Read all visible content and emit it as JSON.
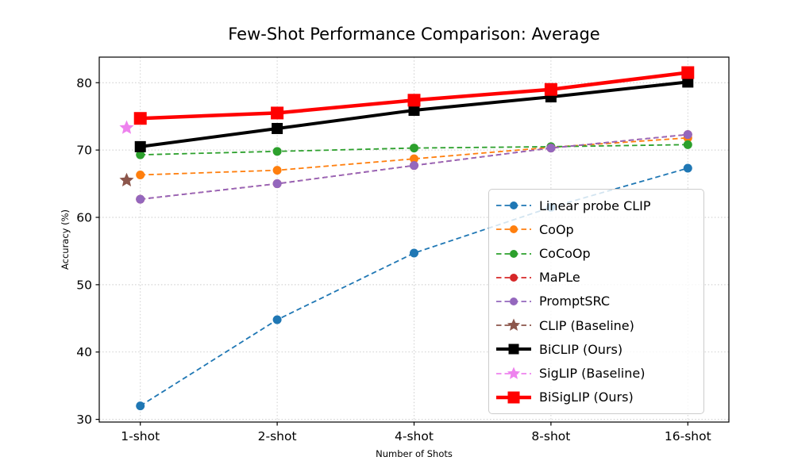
{
  "title": "Few-Shot Performance Comparison: Average",
  "chart_data": {
    "type": "line",
    "title": "Few-Shot Performance Comparison: Average",
    "xlabel": "Number of Shots",
    "ylabel": "Accuracy (%)",
    "categories": [
      "1-shot",
      "2-shot",
      "4-shot",
      "8-shot",
      "16-shot"
    ],
    "yticks": [
      30,
      40,
      50,
      60,
      70,
      80
    ],
    "ylim": [
      29.6,
      83.8
    ],
    "grid": true,
    "grid_style": "dotted",
    "legend_position": "lower-right-inside",
    "series": [
      {
        "name": "Linear probe CLIP",
        "color": "#1f77b4",
        "line": "dashed",
        "marker": "circle",
        "width": 1.8,
        "values": [
          32.0,
          44.8,
          54.7,
          61.5,
          67.3
        ]
      },
      {
        "name": "CoOp",
        "color": "#ff7f0e",
        "line": "dashed",
        "marker": "circle",
        "width": 1.8,
        "values": [
          66.3,
          67.0,
          68.7,
          70.4,
          71.8
        ]
      },
      {
        "name": "CoCoOp",
        "color": "#2ca02c",
        "line": "dashed",
        "marker": "circle",
        "width": 1.8,
        "values": [
          69.3,
          69.8,
          70.3,
          70.5,
          70.8
        ]
      },
      {
        "name": "MaPLe",
        "color": "#d62728",
        "line": "dashed",
        "marker": "circle",
        "width": 1.8,
        "values": [
          62.7,
          65.0,
          67.7,
          70.3,
          72.3
        ]
      },
      {
        "name": "PromptSRC",
        "color": "#9467bd",
        "line": "dashed",
        "marker": "circle",
        "width": 1.8,
        "values": [
          62.7,
          65.0,
          67.7,
          70.3,
          72.3
        ]
      },
      {
        "name": "CLIP (Baseline)",
        "color": "#8c564b",
        "line": "dashed",
        "marker": "star",
        "width": 1.8,
        "x_offset": -0.1,
        "values": [
          65.5,
          null,
          null,
          null,
          null
        ]
      },
      {
        "name": "BiCLIP (Ours)",
        "color": "#000000",
        "line": "solid",
        "marker": "square",
        "width": 4,
        "values": [
          70.5,
          73.2,
          75.9,
          77.9,
          80.1
        ]
      },
      {
        "name": "SigLIP (Baseline)",
        "color": "#ee82ee",
        "line": "dashed",
        "marker": "star",
        "width": 1.8,
        "x_offset": -0.1,
        "values": [
          73.3,
          null,
          null,
          null,
          null
        ]
      },
      {
        "name": "BiSigLIP (Ours)",
        "color": "#ff0000",
        "line": "solid",
        "marker": "square",
        "width": 4.5,
        "values": [
          74.7,
          75.5,
          77.4,
          79.0,
          81.5
        ]
      }
    ]
  }
}
